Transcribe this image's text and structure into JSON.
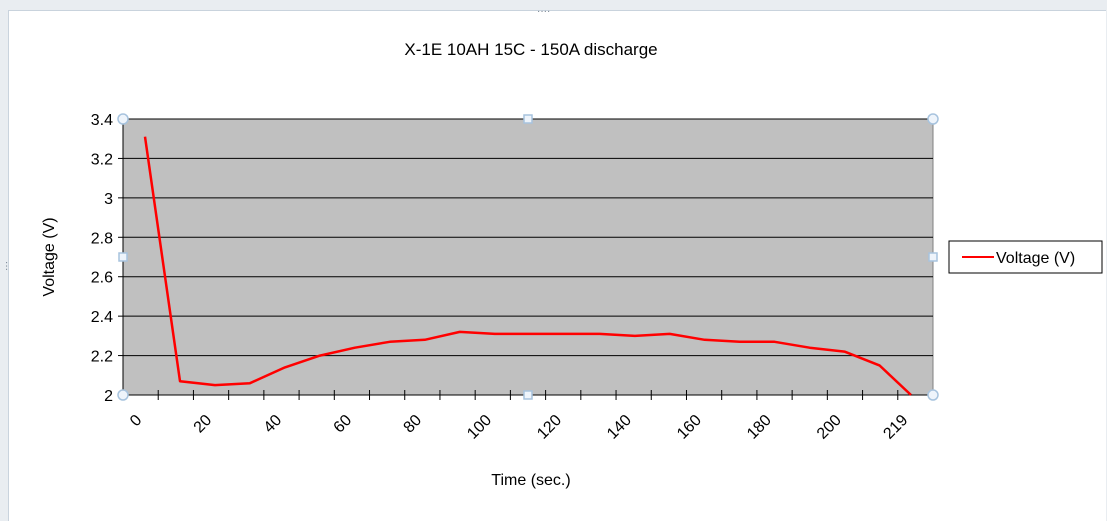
{
  "chart_data": {
    "type": "line",
    "title": "X-1E 10AH 15C - 150A discharge",
    "xlabel": "Time (sec.)",
    "ylabel": "Voltage (V)",
    "ylim": [
      2,
      3.4
    ],
    "xlim": [
      0,
      219
    ],
    "y_ticks": [
      "3.4",
      "3.2",
      "3",
      "2.8",
      "2.6",
      "2.4",
      "2.2",
      "2"
    ],
    "x_ticks": [
      "0",
      "20",
      "40",
      "60",
      "80",
      "100",
      "120",
      "140",
      "160",
      "180",
      "200",
      "219"
    ],
    "x_tick_values": [
      0,
      20,
      40,
      60,
      80,
      100,
      120,
      140,
      160,
      180,
      200,
      219
    ],
    "grid": true,
    "legend_position": "right",
    "colors": {
      "series": "#ff0000",
      "plot_area": "#c0c0c0",
      "handles": "#a7c3de"
    },
    "series": [
      {
        "name": "Voltage (V)",
        "x": [
          0,
          10,
          20,
          30,
          40,
          50,
          60,
          70,
          80,
          90,
          100,
          110,
          120,
          130,
          140,
          150,
          160,
          170,
          180,
          190,
          200,
          210,
          219
        ],
        "values": [
          3.31,
          2.07,
          2.05,
          2.06,
          2.14,
          2.2,
          2.24,
          2.27,
          2.28,
          2.32,
          2.31,
          2.31,
          2.31,
          2.31,
          2.3,
          2.31,
          2.28,
          2.27,
          2.27,
          2.24,
          2.22,
          2.15,
          2.0
        ]
      }
    ]
  }
}
